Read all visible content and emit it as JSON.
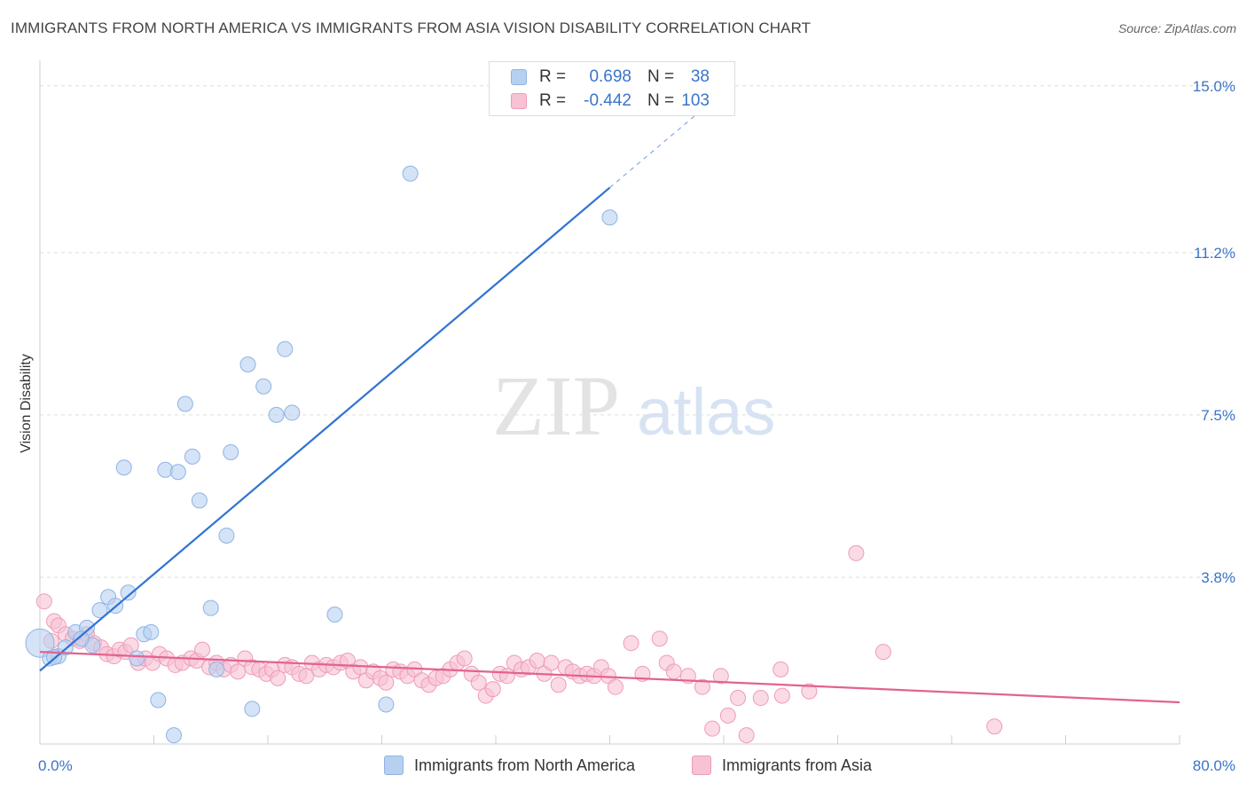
{
  "title": "IMMIGRANTS FROM NORTH AMERICA VS IMMIGRANTS FROM ASIA VISION DISABILITY CORRELATION CHART",
  "source": "Source: ZipAtlas.com",
  "watermark": {
    "zip": "ZIP",
    "atlas": "atlas"
  },
  "legend": {
    "rows": [
      {
        "r_label": "R =",
        "r_value": "0.698",
        "n_label": "N =",
        "n_value": "38"
      },
      {
        "r_label": "R =",
        "r_value": "-0.442",
        "n_label": "N =",
        "n_value": "103"
      }
    ]
  },
  "colors": {
    "blue_fill": "#b8d0f0",
    "blue_stroke": "#8fb3e6",
    "blue_line": "#2f73d2",
    "pink_fill": "#f7c2d4",
    "pink_stroke": "#f09bb8",
    "pink_line": "#e2638f",
    "axis_text": "#3a74c9",
    "grid": "#dddddd"
  },
  "chart_data": {
    "type": "scatter",
    "title": "IMMIGRANTS FROM NORTH AMERICA VS IMMIGRANTS FROM ASIA VISION DISABILITY CORRELATION CHART",
    "xlabel": "",
    "ylabel": "Vision Disability",
    "xlim": [
      0,
      80
    ],
    "ylim": [
      0,
      15.4
    ],
    "x_tick_labels": [
      "0.0%",
      "80.0%"
    ],
    "y_ticks": [
      3.8,
      7.5,
      11.2,
      15.0
    ],
    "y_tick_labels": [
      "3.8%",
      "7.5%",
      "11.2%",
      "15.0%"
    ],
    "series": [
      {
        "name": "Immigrants from North America",
        "color": "#b8d0f0",
        "r": 0.698,
        "n": 38,
        "trend": {
          "x": [
            0,
            40
          ],
          "y": [
            1.67,
            12.68
          ],
          "dashed_to": [
            47,
            14.6
          ]
        },
        "points": [
          [
            0.0,
            2.3
          ],
          [
            0.7,
            1.95
          ],
          [
            1.3,
            2.0
          ],
          [
            1.8,
            2.2
          ],
          [
            2.5,
            2.55
          ],
          [
            3.3,
            2.65
          ],
          [
            3.7,
            2.25
          ],
          [
            4.2,
            3.05
          ],
          [
            4.8,
            3.35
          ],
          [
            5.3,
            3.15
          ],
          [
            5.9,
            6.3
          ],
          [
            6.2,
            3.45
          ],
          [
            6.8,
            1.95
          ],
          [
            7.3,
            2.5
          ],
          [
            7.8,
            2.55
          ],
          [
            8.3,
            1.0
          ],
          [
            8.8,
            6.25
          ],
          [
            9.4,
            0.2
          ],
          [
            9.7,
            6.2
          ],
          [
            10.2,
            7.75
          ],
          [
            10.7,
            6.55
          ],
          [
            11.2,
            5.55
          ],
          [
            12.0,
            3.1
          ],
          [
            12.4,
            1.7
          ],
          [
            13.1,
            4.75
          ],
          [
            13.4,
            6.65
          ],
          [
            14.6,
            8.65
          ],
          [
            14.9,
            0.8
          ],
          [
            15.7,
            8.15
          ],
          [
            16.6,
            7.5
          ],
          [
            17.2,
            9.0
          ],
          [
            17.7,
            7.55
          ],
          [
            20.7,
            2.95
          ],
          [
            24.3,
            0.9
          ],
          [
            26.0,
            13.0
          ],
          [
            40.0,
            12.0
          ],
          [
            1.0,
            1.98
          ],
          [
            2.9,
            2.4
          ]
        ]
      },
      {
        "name": "Immigrants from Asia",
        "color": "#f7c2d4",
        "r": -0.442,
        "n": 103,
        "trend": {
          "x": [
            0,
            80
          ],
          "y": [
            2.1,
            0.95
          ]
        },
        "points": [
          [
            0.3,
            3.25
          ],
          [
            0.8,
            2.35
          ],
          [
            1.0,
            2.8
          ],
          [
            1.3,
            2.7
          ],
          [
            1.8,
            2.5
          ],
          [
            2.3,
            2.4
          ],
          [
            2.8,
            2.35
          ],
          [
            3.3,
            2.5
          ],
          [
            3.8,
            2.3
          ],
          [
            4.3,
            2.2
          ],
          [
            4.7,
            2.05
          ],
          [
            5.2,
            2.0
          ],
          [
            5.6,
            2.15
          ],
          [
            6.0,
            2.1
          ],
          [
            6.4,
            2.25
          ],
          [
            6.9,
            1.85
          ],
          [
            7.4,
            1.95
          ],
          [
            7.9,
            1.85
          ],
          [
            8.4,
            2.05
          ],
          [
            8.9,
            1.95
          ],
          [
            9.5,
            1.8
          ],
          [
            10.0,
            1.85
          ],
          [
            10.6,
            1.95
          ],
          [
            11.0,
            1.9
          ],
          [
            11.4,
            2.15
          ],
          [
            11.9,
            1.75
          ],
          [
            12.4,
            1.85
          ],
          [
            12.9,
            1.7
          ],
          [
            13.4,
            1.8
          ],
          [
            13.9,
            1.65
          ],
          [
            14.4,
            1.95
          ],
          [
            14.9,
            1.75
          ],
          [
            15.4,
            1.7
          ],
          [
            15.9,
            1.6
          ],
          [
            16.3,
            1.7
          ],
          [
            16.7,
            1.5
          ],
          [
            17.2,
            1.8
          ],
          [
            17.7,
            1.75
          ],
          [
            18.2,
            1.6
          ],
          [
            18.7,
            1.55
          ],
          [
            19.1,
            1.85
          ],
          [
            19.6,
            1.7
          ],
          [
            20.1,
            1.8
          ],
          [
            20.6,
            1.75
          ],
          [
            21.1,
            1.85
          ],
          [
            21.6,
            1.9
          ],
          [
            22.0,
            1.65
          ],
          [
            22.5,
            1.75
          ],
          [
            22.9,
            1.45
          ],
          [
            23.4,
            1.65
          ],
          [
            23.9,
            1.5
          ],
          [
            24.3,
            1.4
          ],
          [
            24.8,
            1.7
          ],
          [
            25.3,
            1.65
          ],
          [
            25.8,
            1.55
          ],
          [
            26.3,
            1.7
          ],
          [
            26.8,
            1.45
          ],
          [
            27.3,
            1.35
          ],
          [
            27.8,
            1.5
          ],
          [
            28.3,
            1.55
          ],
          [
            28.8,
            1.7
          ],
          [
            29.3,
            1.85
          ],
          [
            29.8,
            1.95
          ],
          [
            30.3,
            1.6
          ],
          [
            30.8,
            1.4
          ],
          [
            31.3,
            1.1
          ],
          [
            31.8,
            1.25
          ],
          [
            32.3,
            1.6
          ],
          [
            32.8,
            1.55
          ],
          [
            33.3,
            1.85
          ],
          [
            33.8,
            1.7
          ],
          [
            34.3,
            1.75
          ],
          [
            34.9,
            1.9
          ],
          [
            35.4,
            1.6
          ],
          [
            35.9,
            1.85
          ],
          [
            36.4,
            1.35
          ],
          [
            36.9,
            1.75
          ],
          [
            37.4,
            1.65
          ],
          [
            37.9,
            1.55
          ],
          [
            38.4,
            1.6
          ],
          [
            38.9,
            1.55
          ],
          [
            39.4,
            1.75
          ],
          [
            39.9,
            1.55
          ],
          [
            40.4,
            1.3
          ],
          [
            41.5,
            2.3
          ],
          [
            42.3,
            1.6
          ],
          [
            43.5,
            2.4
          ],
          [
            44.0,
            1.85
          ],
          [
            44.5,
            1.65
          ],
          [
            45.5,
            1.55
          ],
          [
            46.5,
            1.3
          ],
          [
            47.2,
            0.35
          ],
          [
            47.8,
            1.55
          ],
          [
            48.3,
            0.65
          ],
          [
            49.0,
            1.05
          ],
          [
            49.6,
            0.2
          ],
          [
            50.6,
            1.05
          ],
          [
            52.0,
            1.7
          ],
          [
            52.1,
            1.1
          ],
          [
            54.0,
            1.2
          ],
          [
            57.3,
            4.35
          ],
          [
            59.2,
            2.1
          ],
          [
            67.0,
            0.4
          ]
        ]
      }
    ]
  },
  "bottom_legend": {
    "items": [
      {
        "label": "Immigrants from North America"
      },
      {
        "label": "Immigrants from Asia"
      }
    ]
  }
}
